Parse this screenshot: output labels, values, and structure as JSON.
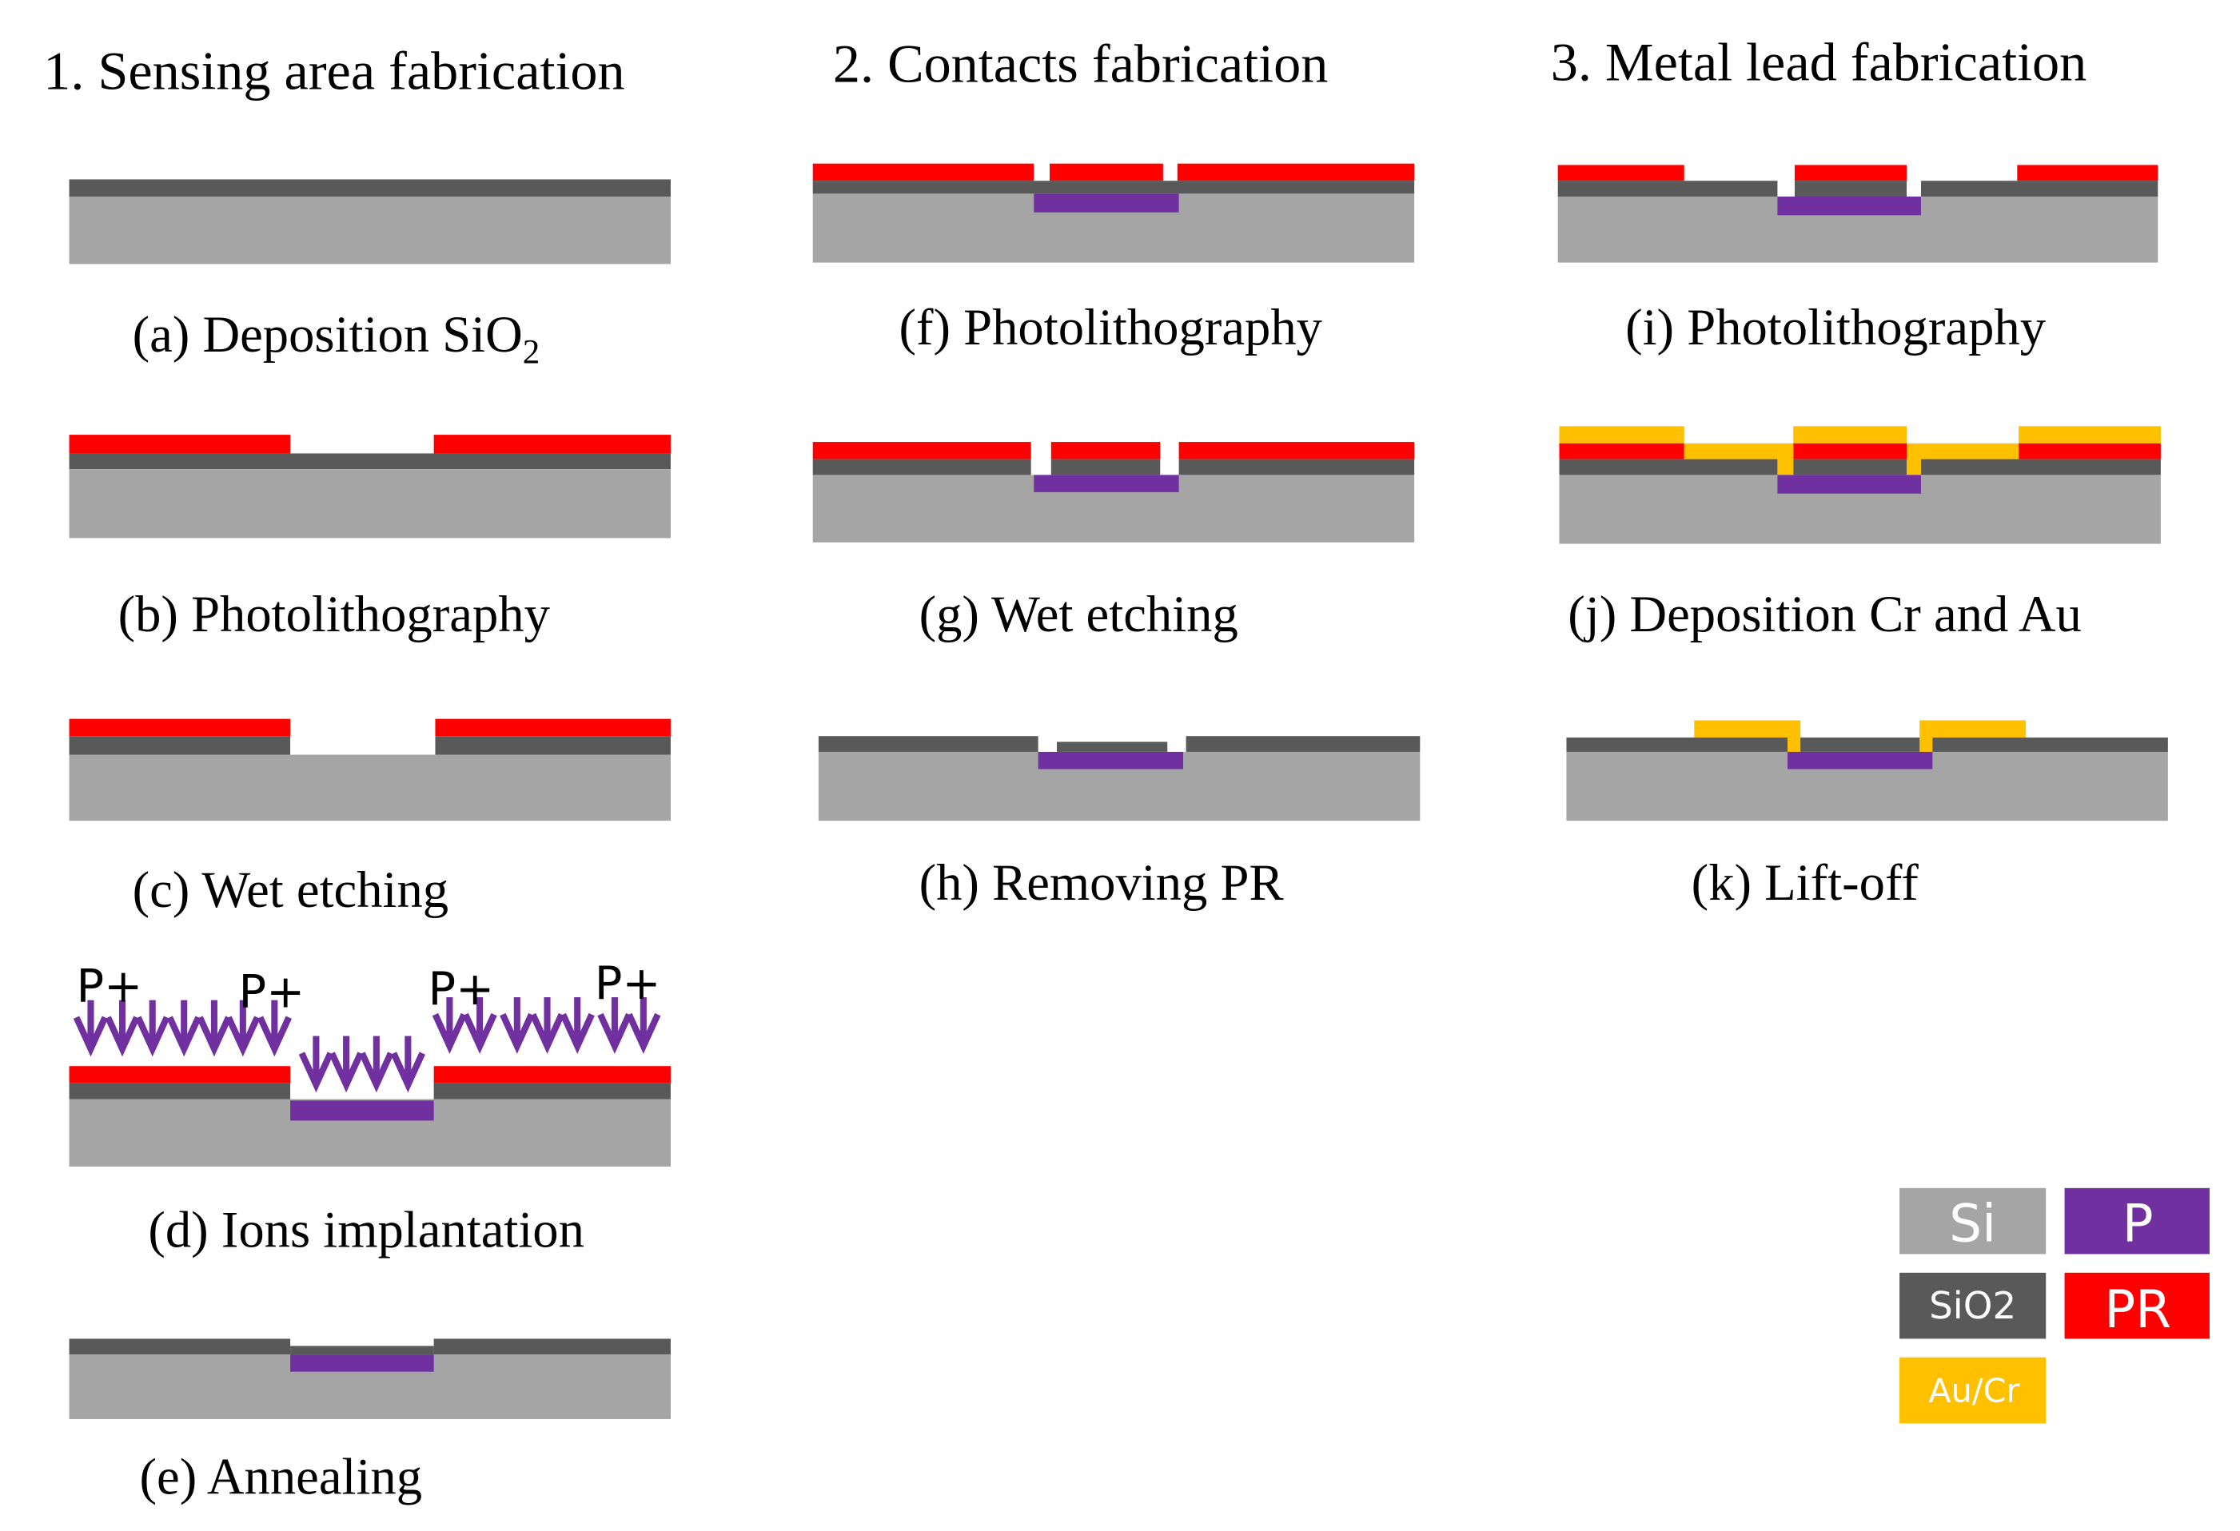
{
  "colors": {
    "si": "#a5a5a5",
    "sio2": "#595959",
    "pr": "#ff0000",
    "p": "#7030a0",
    "au_cr": "#ffc000"
  },
  "columns": [
    {
      "title": "1. Sensing area fabrication"
    },
    {
      "title": "2. Contacts fabrication"
    },
    {
      "title": "3. Metal lead fabrication"
    }
  ],
  "steps": {
    "a": {
      "prefix": "(a) Deposition SiO",
      "subscript": "2"
    },
    "b": "(b) Photolithography",
    "c": "(c) Wet etching",
    "d": "(d) Ions implantation",
    "e": "(e) Annealing",
    "f": "(f) Photolithography",
    "g": "(g) Wet etching",
    "h": "(h) Removing PR",
    "i": "(i) Photolithography",
    "j": "(j) Deposition Cr and Au",
    "k": "(k) Lift-off"
  },
  "ion_label": "P+",
  "legend": {
    "si": "Si",
    "p": "P",
    "sio2": "SiO2",
    "pr": "PR",
    "au_cr": "Au/Cr"
  }
}
